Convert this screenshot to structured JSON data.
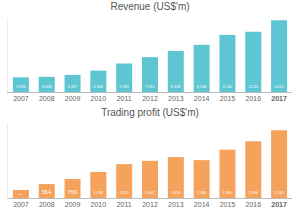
{
  "chart_data": [
    {
      "type": "bar",
      "title": "Revenue (US$'m)",
      "categories": [
        "2007",
        "2008",
        "2009",
        "2010",
        "2011",
        "2012",
        "2013",
        "2014",
        "2015",
        "2016",
        "2017"
      ],
      "values": [
        2969,
        3068,
        3471,
        4340,
        5780,
        7071,
        8333,
        9558,
        11540,
        12224,
        14562
      ],
      "value_labels": [
        "2,969",
        "3,068",
        "3,471",
        "4,340",
        "5,780",
        "7,071",
        "8,333",
        "9,558",
        "11,540",
        "12,224",
        "14,562"
      ],
      "color": "#5ec6d3",
      "ylim": [
        0,
        15000
      ],
      "data_labels": true,
      "tick_labels": "x",
      "grid": false
    },
    {
      "type": "bar",
      "title": "Trading profit (US$'m)",
      "categories": [
        "2007",
        "2008",
        "2009",
        "2010",
        "2011",
        "2012",
        "2013",
        "2014",
        "2015",
        "2016",
        "2017"
      ],
      "values": [
        324,
        564,
        769,
        1058,
        1372,
        1507,
        1659,
        1536,
        1960,
        2296,
        2746
      ],
      "value_labels": [
        "324",
        "564",
        "769",
        "1,058",
        "1,372",
        "1,507",
        "1,659",
        "1,536",
        "1,960",
        "2,296",
        "2,746"
      ],
      "color": "#f5a25d",
      "ylim": [
        0,
        3000
      ],
      "data_labels": true,
      "tick_labels": "x",
      "grid": false
    }
  ]
}
